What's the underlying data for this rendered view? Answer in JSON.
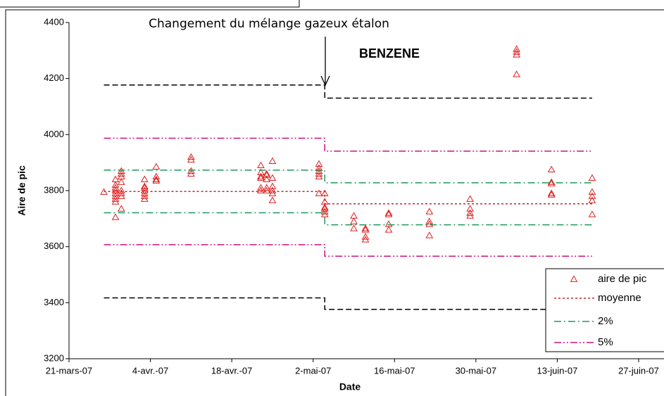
{
  "chart_data": {
    "type": "scatter",
    "annotations": [
      "Changement du mélange gazeux étalon",
      "BENZENE"
    ],
    "x_label": "Date",
    "y_label": "Aire de pic",
    "xlim": [
      "2007-03-21",
      "2007-06-27"
    ],
    "xticks": [
      {
        "value": "2007-03-21",
        "label": "21-mars-07"
      },
      {
        "value": "2007-04-04",
        "label": "4-avr.-07"
      },
      {
        "value": "2007-04-18",
        "label": "18-avr.-07"
      },
      {
        "value": "2007-05-02",
        "label": "2-mai-07"
      },
      {
        "value": "2007-05-16",
        "label": "16-mai-07"
      },
      {
        "value": "2007-05-30",
        "label": "30-mai-07"
      },
      {
        "value": "2007-06-13",
        "label": "13-juin-07"
      },
      {
        "value": "2007-06-27",
        "label": "27-juin-07"
      }
    ],
    "ylim": [
      3200,
      4400
    ],
    "yticks": [
      3200,
      3400,
      3600,
      3800,
      4000,
      4200,
      4400
    ],
    "series": [
      {
        "name": "aire de pic",
        "kind": "points",
        "color": "#e02020",
        "x": [
          "2007-03-27",
          "2007-03-29",
          "2007-03-29",
          "2007-03-29",
          "2007-03-29",
          "2007-03-29",
          "2007-03-29",
          "2007-03-29",
          "2007-03-29",
          "2007-03-29",
          "2007-03-30",
          "2007-03-30",
          "2007-03-30",
          "2007-03-30",
          "2007-03-30",
          "2007-03-30",
          "2007-03-30",
          "2007-03-30",
          "2007-04-03",
          "2007-04-03",
          "2007-04-03",
          "2007-04-03",
          "2007-04-03",
          "2007-04-03",
          "2007-04-03",
          "2007-04-05",
          "2007-04-05",
          "2007-04-05",
          "2007-04-05",
          "2007-04-11",
          "2007-04-11",
          "2007-04-11",
          "2007-04-11",
          "2007-04-23",
          "2007-04-23",
          "2007-04-23",
          "2007-04-23",
          "2007-04-23",
          "2007-04-23",
          "2007-04-24",
          "2007-04-24",
          "2007-04-24",
          "2007-04-24",
          "2007-04-24",
          "2007-04-25",
          "2007-04-25",
          "2007-04-25",
          "2007-04-25",
          "2007-04-25",
          "2007-04-25",
          "2007-05-03",
          "2007-05-03",
          "2007-05-03",
          "2007-05-03",
          "2007-05-03",
          "2007-05-03",
          "2007-05-04",
          "2007-05-04",
          "2007-05-04",
          "2007-05-04",
          "2007-05-04",
          "2007-05-04",
          "2007-05-09",
          "2007-05-09",
          "2007-05-09",
          "2007-05-11",
          "2007-05-11",
          "2007-05-11",
          "2007-05-11",
          "2007-05-15",
          "2007-05-15",
          "2007-05-15",
          "2007-05-15",
          "2007-05-22",
          "2007-05-22",
          "2007-05-22",
          "2007-05-22",
          "2007-05-29",
          "2007-05-29",
          "2007-05-29",
          "2007-05-29",
          "2007-06-06",
          "2007-06-06",
          "2007-06-06",
          "2007-06-06",
          "2007-06-12",
          "2007-06-12",
          "2007-06-12",
          "2007-06-12",
          "2007-06-12",
          "2007-06-19",
          "2007-06-19",
          "2007-06-19",
          "2007-06-19",
          "2007-06-19"
        ],
        "values": [
          3795,
          3840,
          3820,
          3810,
          3800,
          3790,
          3780,
          3770,
          3760,
          3705,
          3870,
          3860,
          3850,
          3830,
          3800,
          3790,
          3780,
          3735,
          3840,
          3815,
          3810,
          3800,
          3790,
          3780,
          3770,
          3885,
          3850,
          3840,
          3835,
          3920,
          3910,
          3870,
          3860,
          3890,
          3865,
          3850,
          3845,
          3810,
          3800,
          3860,
          3855,
          3840,
          3810,
          3800,
          3905,
          3845,
          3815,
          3800,
          3790,
          3765,
          3895,
          3880,
          3870,
          3860,
          3850,
          3790,
          3790,
          3760,
          3740,
          3735,
          3725,
          3715,
          3710,
          3690,
          3665,
          3665,
          3660,
          3635,
          3625,
          3720,
          3715,
          3680,
          3660,
          3725,
          3690,
          3680,
          3640,
          3770,
          3735,
          3720,
          3710,
          4305,
          4295,
          4285,
          4215,
          3875,
          3830,
          3825,
          3790,
          3785,
          3845,
          3795,
          3780,
          3765,
          3715
        ]
      },
      {
        "name": "moyenne",
        "kind": "line",
        "color": "#c0282a",
        "dash": "3 3",
        "x": [
          "2007-03-27",
          "2007-05-04",
          "2007-05-04",
          "2007-06-19"
        ],
        "values": [
          3797,
          3797,
          3753,
          3753
        ]
      },
      {
        "name": "2%",
        "kind": "line",
        "color": "#1a9a5a",
        "dash": "10 4 2 4",
        "x": [
          "2007-03-27",
          "2007-05-04",
          "2007-05-04",
          "2007-06-19",
          null,
          "2007-03-27",
          "2007-05-04",
          "2007-05-04",
          "2007-06-19"
        ],
        "values": [
          3873,
          3873,
          3828,
          3828,
          null,
          3721,
          3721,
          3678,
          3678
        ]
      },
      {
        "name": "5%",
        "kind": "line",
        "color": "#cc1080",
        "dash": "10 3 2 3 2 3",
        "x": [
          "2007-03-27",
          "2007-05-04",
          "2007-05-04",
          "2007-06-19",
          null,
          "2007-03-27",
          "2007-05-04",
          "2007-05-04",
          "2007-06-19"
        ],
        "values": [
          3987,
          3987,
          3941,
          3941,
          null,
          3607,
          3607,
          3566,
          3566
        ]
      },
      {
        "kind": "line",
        "color": "#000000",
        "dash": "8 4",
        "x": [
          "2007-03-27",
          "2007-05-04",
          "2007-05-04",
          "2007-06-19",
          null,
          "2007-03-27",
          "2007-05-04",
          "2007-05-04",
          "2007-06-19"
        ],
        "values": [
          4177,
          4177,
          4130,
          4130,
          null,
          3417,
          3417,
          3376,
          3376
        ]
      }
    ]
  }
}
